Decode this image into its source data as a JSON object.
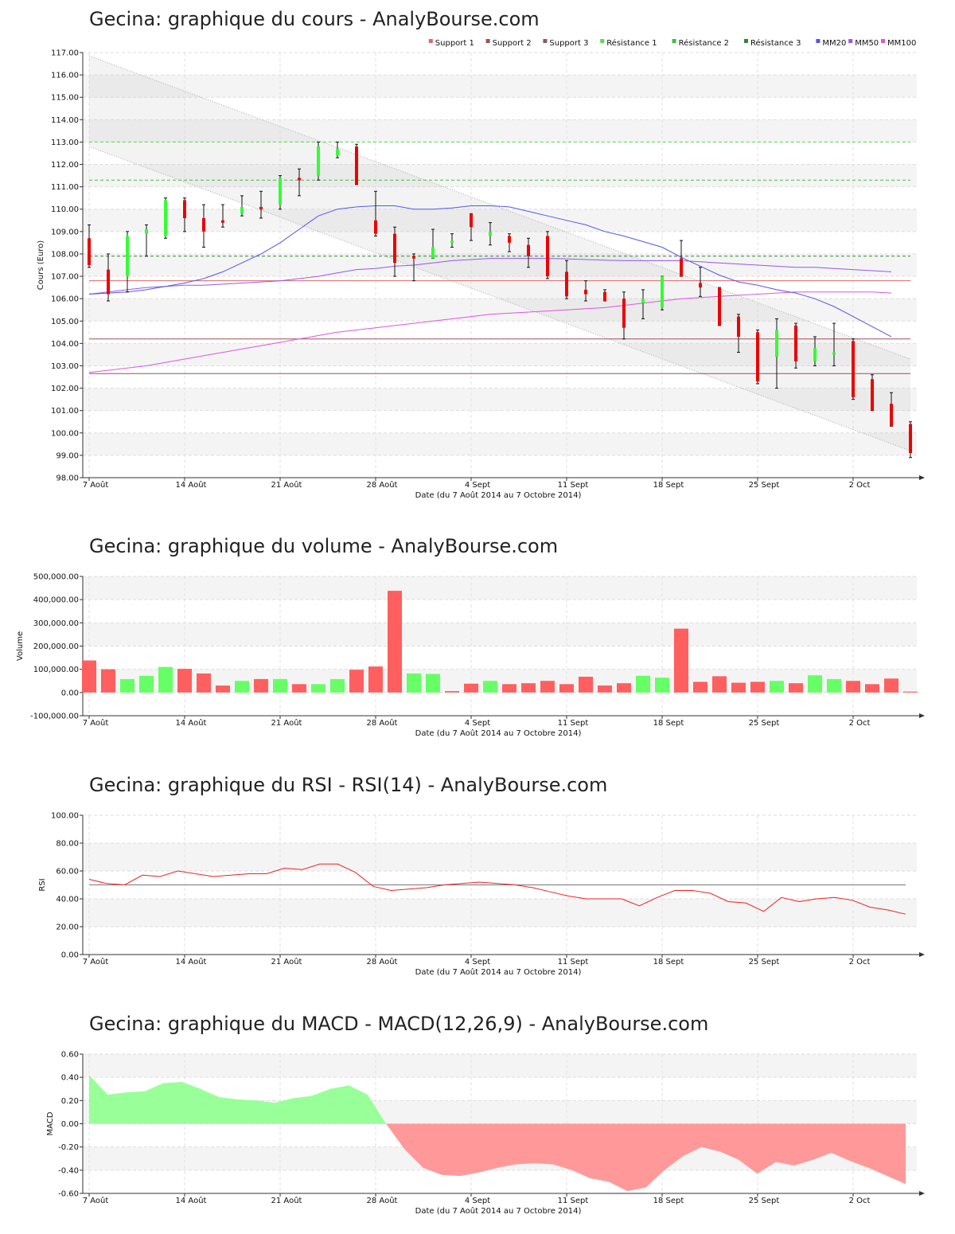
{
  "colors": {
    "up": "#33ff33",
    "down": "#ee0000",
    "support1": "#e06666",
    "support2": "#a05050",
    "support3": "#8a5a5a",
    "resistance1": "#55dd55",
    "resistance2": "#44bb44",
    "resistance3": "#338833",
    "mm20": "#5555ee",
    "mm50": "#9955ee",
    "mm100": "#dd55dd",
    "vol_up": "#66ff66",
    "vol_down": "#ff5f5f",
    "rsi_line": "#ee2222",
    "macd_pos": "#99ff99",
    "macd_neg": "#ff9999"
  },
  "x_ticks": [
    "7 Août",
    "14 Août",
    "21 Août",
    "28 Août",
    "4 Sept",
    "11 Sept",
    "18 Sept",
    "25 Sept",
    "2 Oct"
  ],
  "x_tick_days": [
    0,
    5,
    10,
    15,
    20,
    25,
    30,
    35,
    40
  ],
  "x_label": "Date (du 7 Août 2014 au 7 Octobre 2014)",
  "charts": [
    {
      "id": "price",
      "type": "candlestick",
      "title": "Gecina: graphique du cours - AnalyBourse.com",
      "ylabel": "Cours (Euro)",
      "ylim": [
        98,
        117
      ],
      "yticks": [
        98,
        99,
        100,
        101,
        102,
        103,
        104,
        105,
        106,
        107,
        108,
        109,
        110,
        111,
        112,
        113,
        114,
        115,
        116,
        117
      ],
      "legend": [
        {
          "label": "Support 1",
          "color": "#e06666"
        },
        {
          "label": "Support 2",
          "color": "#a05050"
        },
        {
          "label": "Support 3",
          "color": "#8a5a5a"
        },
        {
          "label": "Résistance 1",
          "color": "#55dd55"
        },
        {
          "label": "Résistance 2",
          "color": "#44bb44"
        },
        {
          "label": "Résistance 3",
          "color": "#338833"
        },
        {
          "label": "MM20",
          "color": "#5555ee"
        },
        {
          "label": "MM50",
          "color": "#9955ee"
        },
        {
          "label": "MM100",
          "color": "#dd55dd"
        }
      ],
      "levels": {
        "support": [
          106.8,
          104.2,
          102.65
        ],
        "resistance": [
          113.0,
          111.3,
          107.9
        ]
      },
      "channel": {
        "upper": [
          116.85,
          103.3
        ],
        "lower": [
          112.8,
          99.2
        ]
      },
      "candles": [
        {
          "o": 108.7,
          "h": 109.3,
          "l": 107.4,
          "c": 107.5
        },
        {
          "o": 107.3,
          "h": 108.0,
          "l": 105.9,
          "c": 106.2
        },
        {
          "o": 107.0,
          "h": 109.0,
          "l": 106.3,
          "c": 108.8
        },
        {
          "o": 108.9,
          "h": 109.3,
          "l": 107.9,
          "c": 109.1
        },
        {
          "o": 108.8,
          "h": 110.5,
          "l": 108.7,
          "c": 110.4
        },
        {
          "o": 110.4,
          "h": 110.5,
          "l": 109.0,
          "c": 109.6
        },
        {
          "o": 109.6,
          "h": 110.2,
          "l": 108.3,
          "c": 109.0
        },
        {
          "o": 109.5,
          "h": 110.2,
          "l": 109.2,
          "c": 109.4
        },
        {
          "o": 109.8,
          "h": 110.6,
          "l": 109.7,
          "c": 110.1
        },
        {
          "o": 110.1,
          "h": 110.8,
          "l": 109.6,
          "c": 110.0
        },
        {
          "o": 110.2,
          "h": 111.5,
          "l": 110.0,
          "c": 111.4
        },
        {
          "o": 111.4,
          "h": 111.8,
          "l": 110.6,
          "c": 111.3
        },
        {
          "o": 111.5,
          "h": 113.0,
          "l": 111.3,
          "c": 112.8
        },
        {
          "o": 112.4,
          "h": 113.0,
          "l": 112.3,
          "c": 112.7
        },
        {
          "o": 112.8,
          "h": 112.9,
          "l": 111.1,
          "c": 111.1
        },
        {
          "o": 109.5,
          "h": 110.8,
          "l": 108.8,
          "c": 108.9
        },
        {
          "o": 108.9,
          "h": 109.2,
          "l": 107.0,
          "c": 107.6
        },
        {
          "o": 107.9,
          "h": 108.0,
          "l": 106.8,
          "c": 107.8
        },
        {
          "o": 107.8,
          "h": 109.1,
          "l": 107.8,
          "c": 108.3
        },
        {
          "o": 108.6,
          "h": 108.9,
          "l": 108.3,
          "c": 108.6
        },
        {
          "o": 109.8,
          "h": 109.8,
          "l": 108.6,
          "c": 109.2
        },
        {
          "o": 108.8,
          "h": 109.4,
          "l": 108.4,
          "c": 109.0
        },
        {
          "o": 108.8,
          "h": 108.9,
          "l": 108.1,
          "c": 108.5
        },
        {
          "o": 108.4,
          "h": 108.7,
          "l": 107.4,
          "c": 107.9
        },
        {
          "o": 108.8,
          "h": 109.0,
          "l": 106.9,
          "c": 107.0
        },
        {
          "o": 107.2,
          "h": 107.7,
          "l": 106.0,
          "c": 106.1
        },
        {
          "o": 106.4,
          "h": 106.8,
          "l": 105.9,
          "c": 106.2
        },
        {
          "o": 106.3,
          "h": 106.4,
          "l": 105.9,
          "c": 105.9
        },
        {
          "o": 106.0,
          "h": 106.3,
          "l": 104.2,
          "c": 104.7
        },
        {
          "o": 105.8,
          "h": 106.4,
          "l": 105.1,
          "c": 106.0
        },
        {
          "o": 105.6,
          "h": 107.0,
          "l": 105.5,
          "c": 107.0
        },
        {
          "o": 107.8,
          "h": 108.6,
          "l": 107.0,
          "c": 107.0
        },
        {
          "o": 106.7,
          "h": 107.4,
          "l": 106.1,
          "c": 106.5
        },
        {
          "o": 106.5,
          "h": 106.5,
          "l": 104.8,
          "c": 104.8
        },
        {
          "o": 105.2,
          "h": 105.3,
          "l": 103.6,
          "c": 104.3
        },
        {
          "o": 104.5,
          "h": 104.6,
          "l": 102.2,
          "c": 102.3
        },
        {
          "o": 103.4,
          "h": 105.1,
          "l": 102.0,
          "c": 104.6
        },
        {
          "o": 104.8,
          "h": 104.9,
          "l": 102.9,
          "c": 103.2
        },
        {
          "o": 103.2,
          "h": 104.3,
          "l": 103.0,
          "c": 103.8
        },
        {
          "o": 103.5,
          "h": 104.9,
          "l": 103.0,
          "c": 103.6
        },
        {
          "o": 104.1,
          "h": 104.2,
          "l": 101.5,
          "c": 101.6
        },
        {
          "o": 102.4,
          "h": 102.6,
          "l": 101.0,
          "c": 101.0
        },
        {
          "o": 101.3,
          "h": 101.8,
          "l": 100.3,
          "c": 100.3
        },
        {
          "o": 100.4,
          "h": 100.5,
          "l": 98.9,
          "c": 99.1
        }
      ],
      "mm20": [
        106.2,
        106.25,
        106.3,
        106.4,
        106.55,
        106.7,
        106.9,
        107.2,
        107.6,
        108.0,
        108.5,
        109.1,
        109.7,
        110.0,
        110.1,
        110.15,
        110.15,
        110.0,
        110.0,
        110.05,
        110.15,
        110.15,
        110.1,
        109.9,
        109.7,
        109.5,
        109.3,
        109.0,
        108.8,
        108.55,
        108.3,
        107.85,
        107.45,
        107.05,
        106.75,
        106.6,
        106.4,
        106.25,
        106.0,
        105.65,
        105.2,
        104.75,
        104.3
      ],
      "mm50": [
        106.2,
        106.3,
        106.4,
        106.5,
        106.55,
        106.6,
        106.6,
        106.65,
        106.7,
        106.75,
        106.8,
        106.9,
        107.0,
        107.15,
        107.3,
        107.35,
        107.45,
        107.5,
        107.6,
        107.7,
        107.75,
        107.8,
        107.8,
        107.8,
        107.8,
        107.78,
        107.75,
        107.72,
        107.7,
        107.7,
        107.7,
        107.7,
        107.65,
        107.6,
        107.55,
        107.5,
        107.45,
        107.4,
        107.4,
        107.35,
        107.3,
        107.25,
        107.2
      ],
      "mm100": [
        102.7,
        102.8,
        102.9,
        103.0,
        103.15,
        103.3,
        103.45,
        103.6,
        103.75,
        103.9,
        104.05,
        104.2,
        104.35,
        104.5,
        104.6,
        104.7,
        104.8,
        104.9,
        105.0,
        105.1,
        105.2,
        105.3,
        105.35,
        105.4,
        105.45,
        105.5,
        105.55,
        105.6,
        105.7,
        105.8,
        105.9,
        106.0,
        106.05,
        106.1,
        106.15,
        106.2,
        106.25,
        106.3,
        106.3,
        106.3,
        106.3,
        106.3,
        106.25
      ]
    },
    {
      "id": "volume",
      "type": "bar",
      "title": "Gecina: graphique du volume - AnalyBourse.com",
      "ylabel": "Volume",
      "ylim": [
        -100000,
        500000
      ],
      "yticks": [
        -100000,
        0,
        100000,
        200000,
        300000,
        400000,
        500000
      ],
      "ytick_labels": [
        "-100,000.00",
        "0.00",
        "100,000.00",
        "200,000.00",
        "300,000.00",
        "400,000.00",
        "500,000.00"
      ],
      "values": [
        138000,
        100000,
        58000,
        72000,
        110000,
        102000,
        82000,
        30000,
        50000,
        58000,
        58000,
        36000,
        36000,
        58000,
        98000,
        112000,
        438000,
        82000,
        80000,
        6000,
        38000,
        50000,
        36000,
        40000,
        50000,
        36000,
        68000,
        30000,
        40000,
        72000,
        64000,
        275000,
        46000,
        70000,
        42000,
        46000,
        50000,
        40000,
        74000,
        58000,
        50000,
        36000,
        60000,
        4000
      ],
      "up": [
        false,
        false,
        true,
        true,
        true,
        false,
        false,
        false,
        true,
        false,
        true,
        false,
        true,
        true,
        false,
        false,
        false,
        true,
        true,
        false,
        false,
        true,
        false,
        false,
        false,
        false,
        false,
        false,
        false,
        true,
        true,
        false,
        false,
        false,
        false,
        false,
        true,
        false,
        true,
        true,
        false,
        false,
        false,
        false
      ]
    },
    {
      "id": "rsi",
      "type": "line",
      "title": "Gecina: graphique du RSI - RSI(14) - AnalyBourse.com",
      "ylabel": "RSI",
      "ylim": [
        0,
        100
      ],
      "yticks": [
        0,
        20,
        40,
        60,
        80,
        100
      ],
      "reference": 50,
      "values": [
        54,
        51,
        50,
        57,
        56,
        60,
        58,
        56,
        57,
        58,
        58,
        62,
        61,
        65,
        65,
        59,
        49,
        46,
        47,
        48,
        50,
        51,
        52,
        51,
        50,
        48,
        45,
        42,
        40,
        40,
        40,
        35,
        41,
        46,
        46,
        44,
        38,
        37,
        31,
        41,
        38,
        40,
        41,
        39,
        34,
        32,
        29
      ]
    },
    {
      "id": "macd",
      "type": "area",
      "title": "Gecina: graphique du MACD - MACD(12,26,9) - AnalyBourse.com",
      "ylabel": "MACD",
      "ylim": [
        -0.6,
        0.6
      ],
      "yticks": [
        -0.6,
        -0.4,
        -0.2,
        0,
        0.2,
        0.4,
        0.6
      ],
      "values": [
        0.42,
        0.25,
        0.27,
        0.28,
        0.35,
        0.36,
        0.3,
        0.23,
        0.21,
        0.2,
        0.18,
        0.22,
        0.24,
        0.3,
        0.33,
        0.25,
        0.0,
        -0.22,
        -0.38,
        -0.44,
        -0.45,
        -0.42,
        -0.38,
        -0.35,
        -0.34,
        -0.35,
        -0.4,
        -0.47,
        -0.5,
        -0.58,
        -0.55,
        -0.4,
        -0.28,
        -0.2,
        -0.24,
        -0.31,
        -0.43,
        -0.33,
        -0.36,
        -0.31,
        -0.25,
        -0.32,
        -0.38,
        -0.45,
        -0.52
      ]
    }
  ]
}
